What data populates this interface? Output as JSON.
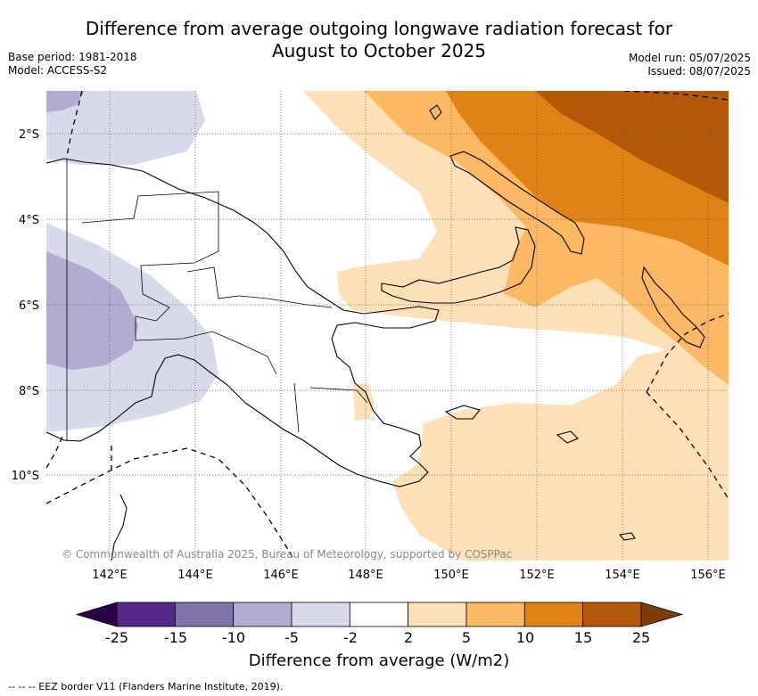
{
  "title_line1": "Difference from average outgoing longwave radiation forecast for",
  "title_line2": "August to October 2025",
  "base_period": "Base period: 1981-2018",
  "model": "Model: ACCESS-S2",
  "model_run": "Model run: 05/07/2025",
  "issued": "Issued: 08/07/2025",
  "copyright": "© Commonwealth of Australia 2025, Bureau of Meteorology, supported by COSPPac",
  "lat_labels": [
    "2°S",
    "4°S",
    "6°S",
    "8°S",
    "10°S"
  ],
  "lon_labels": [
    "142°E",
    "144°E",
    "146°E",
    "148°E",
    "150°E",
    "152°E",
    "154°E",
    "156°E"
  ],
  "colorbar": {
    "ticks": [
      "-25",
      "-15",
      "-10",
      "-5",
      "-2",
      "2",
      "5",
      "10",
      "15",
      "25"
    ],
    "colors": [
      "#2d004b",
      "#542788",
      "#8073ac",
      "#b2abd2",
      "#d8daeb",
      "#ffffff",
      "#fee0b6",
      "#fdb863",
      "#e08214",
      "#b35806",
      "#7f3b08"
    ],
    "label": "Difference from average (W/m2)"
  },
  "legend_footnote": "-- -- -- EEZ border V11 (Flanders Marine Institute, 2019)."
}
